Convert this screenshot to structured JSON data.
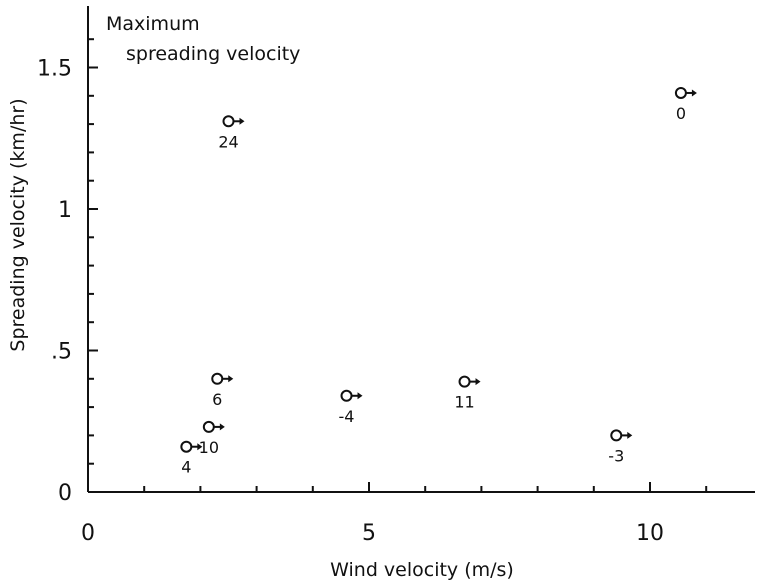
{
  "chart_data": {
    "type": "scatter",
    "title_line1": "Maximum",
    "title_line2": "spreading velocity",
    "xlabel": "Wind velocity (m/s)",
    "ylabel": "Spreading velocity (km/hr)",
    "xlim": [
      0,
      12
    ],
    "ylim": [
      0,
      1.7
    ],
    "x_ticks": [
      {
        "value": 0,
        "label": "0"
      },
      {
        "value": 5,
        "label": "5"
      },
      {
        "value": 10,
        "label": "10"
      }
    ],
    "y_ticks": [
      {
        "value": 0,
        "label": "0"
      },
      {
        "value": 0.5,
        "label": ".5"
      },
      {
        "value": 1,
        "label": "1"
      },
      {
        "value": 1.5,
        "label": "1.5"
      }
    ],
    "grid": false,
    "legend": "none",
    "points": [
      {
        "x": 10.55,
        "y": 1.41,
        "label": "0"
      },
      {
        "x": 2.5,
        "y": 1.31,
        "label": "24"
      },
      {
        "x": 2.3,
        "y": 0.4,
        "label": "6"
      },
      {
        "x": 4.6,
        "y": 0.34,
        "label": "-4"
      },
      {
        "x": 6.7,
        "y": 0.39,
        "label": "11"
      },
      {
        "x": 9.4,
        "y": 0.2,
        "label": "-3"
      },
      {
        "x": 1.75,
        "y": 0.16,
        "label": "4"
      },
      {
        "x": 2.15,
        "y": 0.23,
        "label": "10"
      }
    ]
  }
}
